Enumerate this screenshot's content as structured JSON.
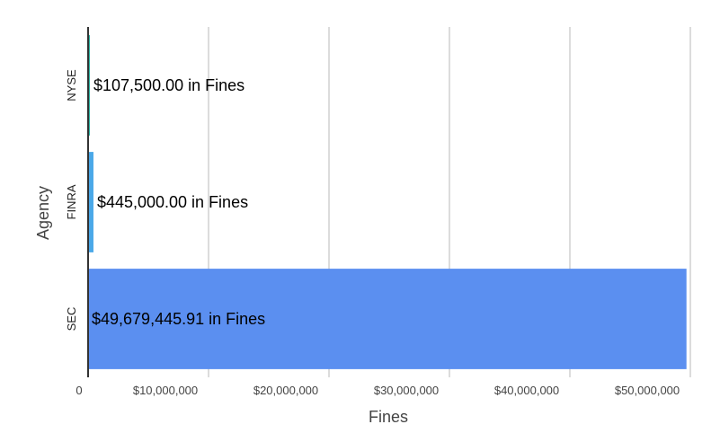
{
  "chart_data": {
    "type": "bar",
    "orientation": "horizontal",
    "categories": [
      "NYSE",
      "FINRA",
      "SEC"
    ],
    "values": [
      107500.0,
      445000.0,
      49679445.91
    ],
    "data_labels": [
      "$107,500.00 in Fines",
      "$445,000.00 in Fines",
      "$49,679,445.91 in Fines"
    ],
    "colors": [
      "#2bb3a3",
      "#4aa8e8",
      "#5b8ff0"
    ],
    "xlabel": "Fines",
    "ylabel": "Agency",
    "xlim": [
      0,
      50000000
    ],
    "x_ticks": [
      0,
      10000000,
      20000000,
      30000000,
      40000000,
      50000000
    ],
    "x_tick_labels": [
      "0",
      "$10,000,000",
      "$20,000,000",
      "$30,000,000",
      "$40,000,000",
      "$50,000,000"
    ],
    "grid": true,
    "legend": "none"
  }
}
